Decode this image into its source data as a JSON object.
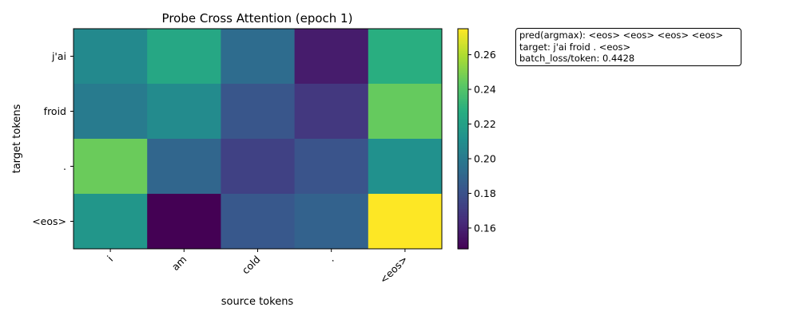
{
  "chart_data": {
    "type": "heatmap",
    "title": "Probe Cross Attention (epoch 1)",
    "xlabel": "source tokens",
    "ylabel": "target tokens",
    "x_categories": [
      "i",
      "am",
      "cold",
      ".",
      "<eos>"
    ],
    "y_categories": [
      "j'ai",
      "froid",
      ".",
      "<eos>"
    ],
    "values": [
      [
        0.208,
        0.224,
        0.193,
        0.158,
        0.228
      ],
      [
        0.201,
        0.209,
        0.182,
        0.169,
        0.245
      ],
      [
        0.246,
        0.19,
        0.173,
        0.181,
        0.212
      ],
      [
        0.215,
        0.148,
        0.183,
        0.188,
        0.275
      ]
    ],
    "colormap": "viridis",
    "vmin": 0.148,
    "vmax": 0.275,
    "colorbar_ticks": [
      "0.16",
      "0.18",
      "0.20",
      "0.22",
      "0.24",
      "0.26"
    ]
  },
  "info": {
    "lines": [
      "pred(argmax): <eos> <eos> <eos> <eos>",
      "target: j'ai froid . <eos>",
      "batch_loss/token: 0.4428"
    ]
  }
}
